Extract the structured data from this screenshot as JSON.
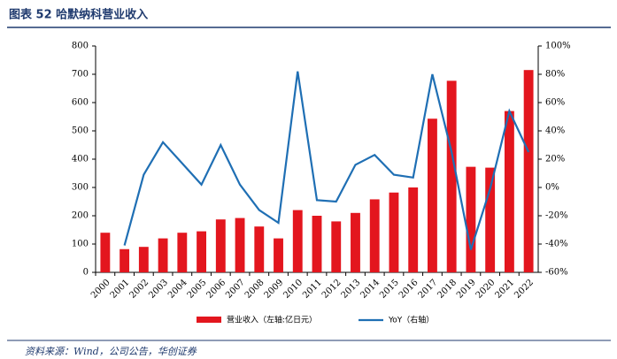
{
  "chart_data": {
    "type": "bar_line",
    "title": "图表 52   哈默纳科营业收入",
    "source": "资料来源：Wind，公司公告，华创证券",
    "categories": [
      "2000",
      "2001",
      "2002",
      "2003",
      "2004",
      "2005",
      "2006",
      "2007",
      "2008",
      "2009",
      "2010",
      "2011",
      "2012",
      "2013",
      "2014",
      "2015",
      "2016",
      "2017",
      "2018",
      "2019",
      "2020",
      "2021",
      "2022"
    ],
    "series": [
      {
        "name": "营业收入（左轴:亿日元）",
        "color": "#e3161e",
        "type": "bar",
        "values": [
          140,
          82,
          90,
          120,
          140,
          145,
          187,
          192,
          162,
          120,
          220,
          200,
          180,
          210,
          258,
          282,
          300,
          543,
          677,
          373,
          370,
          570,
          715
        ]
      },
      {
        "name": "YoY（右轴）",
        "color": "#1f6fb4",
        "type": "line",
        "axis": "y2",
        "values": [
          null,
          -41,
          9,
          32,
          17,
          2,
          30,
          2,
          -16,
          -25,
          82,
          -9,
          -10,
          16,
          23,
          9,
          7,
          80,
          25,
          -44,
          -1,
          54,
          25
        ]
      }
    ],
    "ylim": [
      0,
      800
    ],
    "yticks": [
      0,
      100,
      200,
      300,
      400,
      500,
      600,
      700,
      800
    ],
    "y2lim": [
      -60,
      100
    ],
    "y2ticks": [
      {
        "value": -60,
        "label": "-60%"
      },
      {
        "value": -40,
        "label": "-40%"
      },
      {
        "value": -20,
        "label": "-20%"
      },
      {
        "value": 0,
        "label": "0%"
      },
      {
        "value": 20,
        "label": "20%"
      },
      {
        "value": 40,
        "label": "40%"
      },
      {
        "value": 60,
        "label": "60%"
      },
      {
        "value": 80,
        "label": "80%"
      },
      {
        "value": 100,
        "label": "100%"
      }
    ]
  }
}
